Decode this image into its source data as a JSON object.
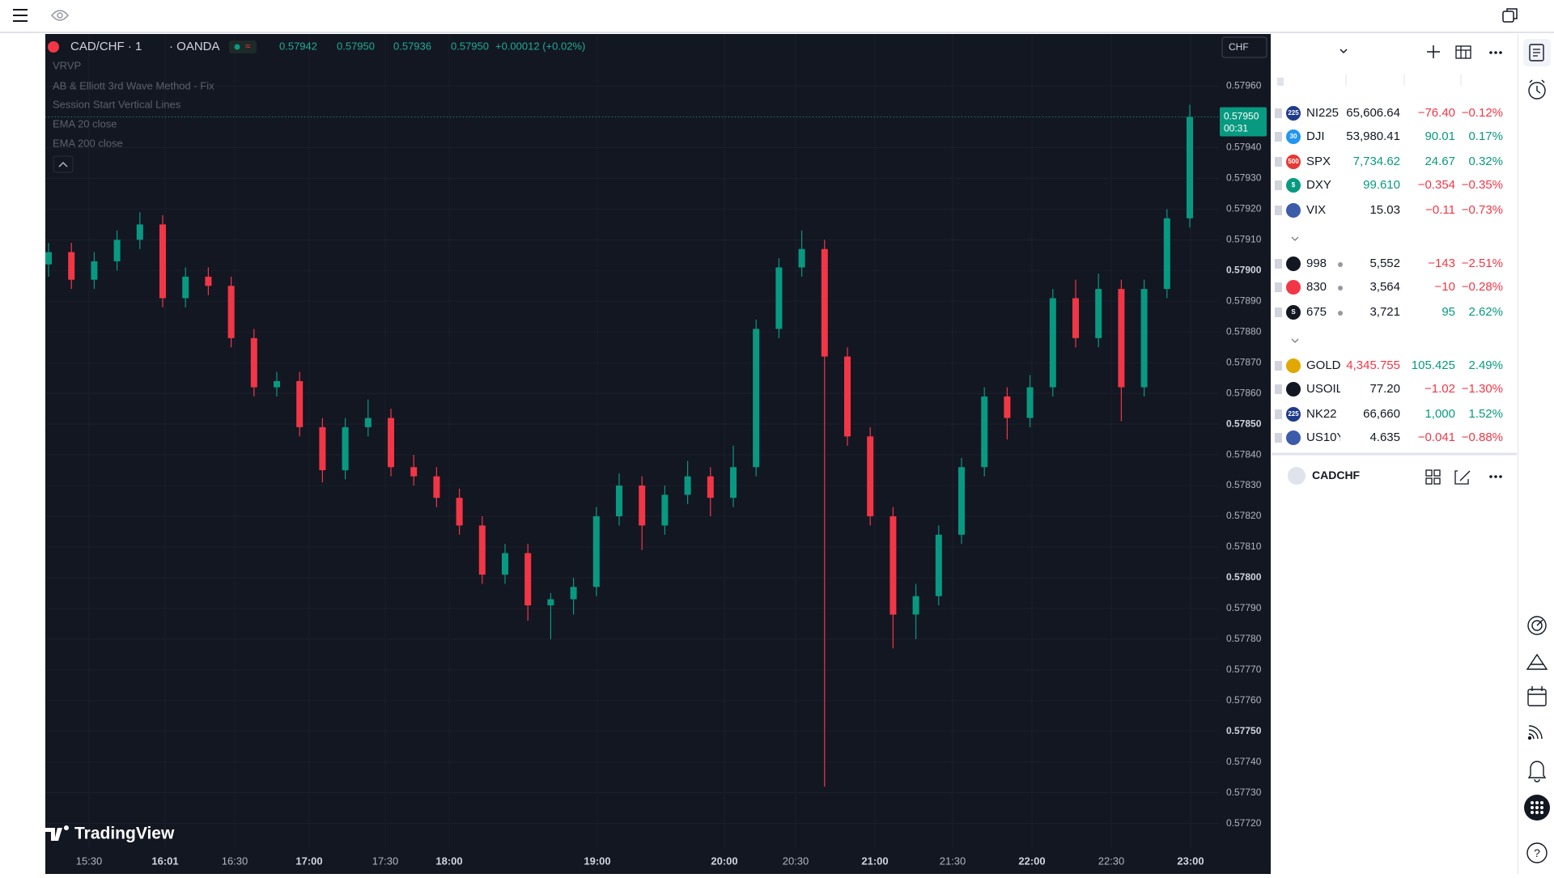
{
  "chart": {
    "type": "candlestick",
    "symbol": "CAD/CHF · 1",
    "exchange": "· OANDA",
    "ohlc": [
      "0.57942",
      "0.57950",
      "0.57936",
      "0.57950"
    ],
    "change": "+0.00012 (+0.02%)",
    "indicators": [
      "VRVP",
      "AB & Elliott 3rd Wave Method - Fix",
      "Session Start Vertical Lines",
      "EMA 20 close",
      "EMA 200 close"
    ],
    "currency": "CHF",
    "brand": "TradingView",
    "up_color": "#089981",
    "down_color": "#f23645",
    "grid": true,
    "ylim": [
      0.57712,
      0.57977
    ],
    "yticks": [
      {
        "value": 0.5796,
        "label": "0.57960"
      },
      {
        "value": 0.5795,
        "label": "0.57950"
      },
      {
        "value": 0.5794,
        "label": "0.57940"
      },
      {
        "value": 0.5793,
        "label": "0.57930"
      },
      {
        "value": 0.5792,
        "label": "0.57920"
      },
      {
        "value": 0.5791,
        "label": "0.57910"
      },
      {
        "value": 0.579,
        "label": "0.57900"
      },
      {
        "value": 0.5789,
        "label": "0.57890"
      },
      {
        "value": 0.5788,
        "label": "0.57880"
      },
      {
        "value": 0.5787,
        "label": "0.57870"
      },
      {
        "value": 0.5786,
        "label": "0.57860"
      },
      {
        "value": 0.5785,
        "label": "0.57850"
      },
      {
        "value": 0.5784,
        "label": "0.57840"
      },
      {
        "value": 0.5783,
        "label": "0.57830"
      },
      {
        "value": 0.5782,
        "label": "0.57820"
      },
      {
        "value": 0.5781,
        "label": "0.57810"
      },
      {
        "value": 0.578,
        "label": "0.57800"
      },
      {
        "value": 0.5779,
        "label": "0.57790"
      },
      {
        "value": 0.5778,
        "label": "0.57780"
      },
      {
        "value": 0.5777,
        "label": "0.57770"
      },
      {
        "value": 0.5776,
        "label": "0.57760"
      },
      {
        "value": 0.5775,
        "label": "0.57750"
      },
      {
        "value": 0.5774,
        "label": "0.57740"
      },
      {
        "value": 0.5773,
        "label": "0.57730"
      },
      {
        "value": 0.5772,
        "label": "0.57720"
      }
    ],
    "xticks": [
      "15:30",
      "16:01",
      "16:30",
      "17:00",
      "17:30",
      "18:00",
      "19:00",
      "20:00",
      "20:30",
      "21:00",
      "21:30",
      "22:00",
      "22:30",
      "23:00"
    ],
    "price_tag": {
      "value": 0.5795,
      "label": "0.57950",
      "countdown": "00:31"
    },
    "candles": [
      [
        0.57902,
        0.57909,
        0.57898,
        0.57906
      ],
      [
        0.57906,
        0.57909,
        0.57894,
        0.57897
      ],
      [
        0.57897,
        0.57906,
        0.57894,
        0.57903
      ],
      [
        0.57903,
        0.57913,
        0.579,
        0.5791
      ],
      [
        0.5791,
        0.57919,
        0.57907,
        0.57915
      ],
      [
        0.57915,
        0.57918,
        0.57888,
        0.57891
      ],
      [
        0.57891,
        0.57901,
        0.57888,
        0.57898
      ],
      [
        0.57898,
        0.57901,
        0.57892,
        0.57895
      ],
      [
        0.57895,
        0.57898,
        0.57875,
        0.57878
      ],
      [
        0.57878,
        0.57881,
        0.57859,
        0.57862
      ],
      [
        0.57862,
        0.57867,
        0.57859,
        0.57864
      ],
      [
        0.57864,
        0.57867,
        0.57846,
        0.57849
      ],
      [
        0.57849,
        0.57852,
        0.57831,
        0.57835
      ],
      [
        0.57835,
        0.57852,
        0.57832,
        0.57849
      ],
      [
        0.57849,
        0.57858,
        0.57846,
        0.57852
      ],
      [
        0.57852,
        0.57855,
        0.57833,
        0.57836
      ],
      [
        0.57836,
        0.5784,
        0.5783,
        0.57833
      ],
      [
        0.57833,
        0.57836,
        0.57823,
        0.57826
      ],
      [
        0.57826,
        0.57829,
        0.57814,
        0.57817
      ],
      [
        0.57817,
        0.5782,
        0.57798,
        0.57801
      ],
      [
        0.57801,
        0.57811,
        0.57798,
        0.57808
      ],
      [
        0.57808,
        0.57811,
        0.57786,
        0.57791
      ],
      [
        0.57791,
        0.57795,
        0.5778,
        0.57793
      ],
      [
        0.57793,
        0.578,
        0.57788,
        0.57797
      ],
      [
        0.57797,
        0.57823,
        0.57794,
        0.5782
      ],
      [
        0.5782,
        0.57834,
        0.57817,
        0.5783
      ],
      [
        0.5783,
        0.57833,
        0.57809,
        0.57817
      ],
      [
        0.57817,
        0.5783,
        0.57814,
        0.57827
      ],
      [
        0.57827,
        0.57838,
        0.57824,
        0.57833
      ],
      [
        0.57833,
        0.57836,
        0.5782,
        0.57826
      ],
      [
        0.57826,
        0.57843,
        0.57823,
        0.57836
      ],
      [
        0.57836,
        0.57884,
        0.57833,
        0.57881
      ],
      [
        0.57881,
        0.57904,
        0.57878,
        0.57901
      ],
      [
        0.57901,
        0.57913,
        0.57898,
        0.57907
      ],
      [
        0.57907,
        0.5791,
        0.57732,
        0.57872
      ],
      [
        0.57872,
        0.57875,
        0.57843,
        0.57846
      ],
      [
        0.57846,
        0.57849,
        0.57817,
        0.5782
      ],
      [
        0.5782,
        0.57823,
        0.57777,
        0.57788
      ],
      [
        0.57788,
        0.57798,
        0.5778,
        0.57794
      ],
      [
        0.57794,
        0.57817,
        0.57791,
        0.57814
      ],
      [
        0.57814,
        0.57839,
        0.57811,
        0.57836
      ],
      [
        0.57836,
        0.57862,
        0.57833,
        0.57859
      ],
      [
        0.57859,
        0.57862,
        0.57845,
        0.57852
      ],
      [
        0.57852,
        0.57866,
        0.57849,
        0.57862
      ],
      [
        0.57862,
        0.57894,
        0.57859,
        0.57891
      ],
      [
        0.57891,
        0.57897,
        0.57875,
        0.57878
      ],
      [
        0.57878,
        0.57899,
        0.57875,
        0.57894
      ],
      [
        0.57894,
        0.57897,
        0.57851,
        0.57862
      ],
      [
        0.57862,
        0.57897,
        0.57859,
        0.57894
      ],
      [
        0.57894,
        0.5792,
        0.57891,
        0.57917
      ],
      [
        0.57917,
        0.57954,
        0.57914,
        0.5795
      ]
    ]
  },
  "watchlist": {
    "sections": [
      {
        "rows": [
          {
            "symbol": "NI225",
            "last": "65,606.64",
            "change": "−76.40",
            "change_pct": "−0.12%",
            "badge": "225",
            "icon_color": "#1e3a8a"
          },
          {
            "symbol": "DJI",
            "last": "53,980.41",
            "change": "90.01",
            "change_pct": "0.17%",
            "badge": "30",
            "icon_color": "#2196f3"
          },
          {
            "symbol": "SPX",
            "last": "7,734.62",
            "change": "24.67",
            "change_pct": "0.32%",
            "badge": "500",
            "icon_color": "#e53935",
            "last_color": "#089981"
          },
          {
            "symbol": "DXY",
            "last": "99.610",
            "change": "−0.354",
            "change_pct": "−0.35%",
            "badge": "$",
            "icon_color": "#089981",
            "last_color": "#089981"
          },
          {
            "symbol": "VIX",
            "last": "15.03",
            "change": "−0.11",
            "change_pct": "−0.73%",
            "icon_color": "#3c5ba9"
          }
        ]
      },
      {
        "rows": [
          {
            "symbol": "998",
            "last": "5,552",
            "change": "−143",
            "change_pct": "−2.51%",
            "icon_color": "#131722"
          },
          {
            "symbol": "830",
            "last": "3,564",
            "change": "−10",
            "change_pct": "−0.28%",
            "icon_color": "#f23645"
          },
          {
            "symbol": "675",
            "last": "3,721",
            "change": "95",
            "change_pct": "2.62%",
            "badge": "S",
            "icon_color": "#131722"
          }
        ]
      },
      {
        "rows": [
          {
            "symbol": "GOLD",
            "last": "4,345.755",
            "change": "105.425",
            "change_pct": "2.49%",
            "icon_color": "#e0a800",
            "last_color": "#f23645"
          },
          {
            "symbol": "USOIL",
            "last": "77.20",
            "change": "−1.02",
            "change_pct": "−1.30%",
            "icon_color": "#131722"
          },
          {
            "symbol": "NK22",
            "last": "66,660",
            "change": "1,000",
            "change_pct": "1.52%",
            "badge": "225",
            "icon_color": "#1e3a8a"
          },
          {
            "symbol": "US10Y",
            "last": "4.635",
            "change": "−0.041",
            "change_pct": "−0.88%",
            "icon_color": "#3c5ba9"
          }
        ]
      }
    ],
    "detail": {
      "symbol": "CADCHF"
    }
  }
}
